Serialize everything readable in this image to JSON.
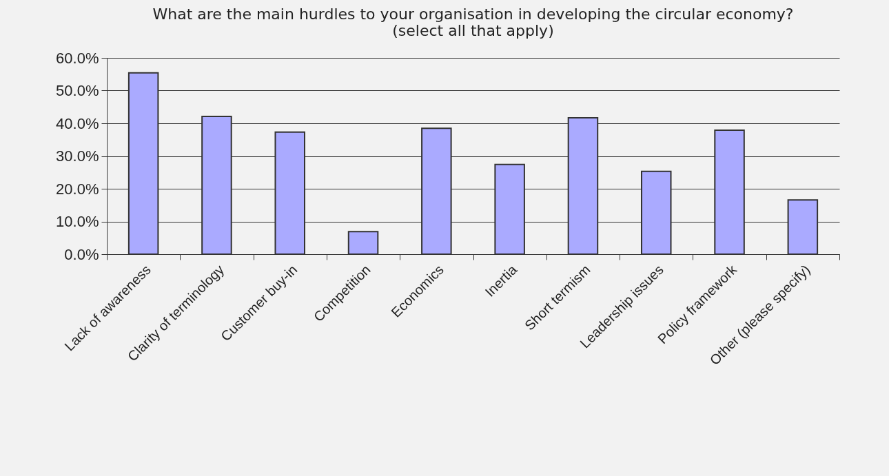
{
  "chart_data": {
    "type": "bar",
    "title": "What are the main hurdles to your organisation in developing the circular economy? (select all that apply)",
    "categories": [
      "Lack of awareness",
      "Clarity of terminology",
      "Customer buy-in",
      "Competition",
      "Economics",
      "Inertia",
      "Short termism",
      "Leadership issues",
      "Policy framework",
      "Other (please specify)"
    ],
    "values": [
      55.4,
      42.1,
      37.3,
      6.9,
      38.5,
      27.4,
      41.7,
      25.3,
      37.9,
      16.6
    ],
    "color": "#aaaaff",
    "ylim": [
      0,
      60
    ],
    "yticks": [
      {
        "value": 0,
        "label": "0.0%"
      },
      {
        "value": 10,
        "label": "10.0%"
      },
      {
        "value": 20,
        "label": "20.0%"
      },
      {
        "value": 30,
        "label": "30.0%"
      },
      {
        "value": 40,
        "label": "40.0%"
      },
      {
        "value": 50,
        "label": "50.0%"
      },
      {
        "value": 60,
        "label": "60.0%"
      }
    ],
    "grid": "y"
  }
}
